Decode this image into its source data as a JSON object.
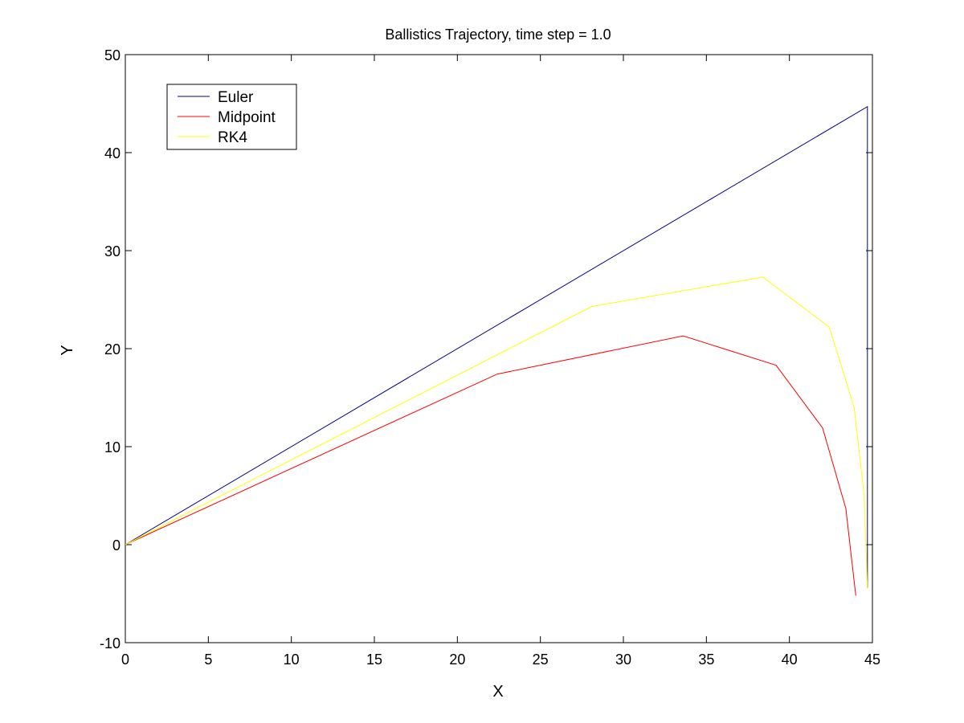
{
  "chart_data": {
    "type": "line",
    "title": "Ballistics Trajectory, time step = 1.0",
    "xlabel": "X",
    "ylabel": "Y",
    "xlim": [
      0,
      45
    ],
    "ylim": [
      -10,
      50
    ],
    "xticks": [
      0,
      5,
      10,
      15,
      20,
      25,
      30,
      35,
      40,
      45
    ],
    "yticks": [
      -10,
      0,
      10,
      20,
      30,
      40,
      50
    ],
    "grid": false,
    "legend_position": "top-left",
    "series": [
      {
        "name": "Euler",
        "color": "#00008b",
        "points": [
          [
            0,
            0
          ],
          [
            44.7,
            44.7
          ],
          [
            44.7,
            -4.4
          ]
        ]
      },
      {
        "name": "Midpoint",
        "color": "#ff0000",
        "points": [
          [
            0,
            0
          ],
          [
            22.4,
            17.4
          ],
          [
            33.6,
            21.3
          ],
          [
            39.2,
            18.3
          ],
          [
            42.0,
            11.9
          ],
          [
            43.4,
            3.7
          ],
          [
            44.0,
            -5.2
          ]
        ]
      },
      {
        "name": "RK4",
        "color": "#ffff00",
        "points": [
          [
            0,
            0
          ],
          [
            28.1,
            24.3
          ],
          [
            38.4,
            27.3
          ],
          [
            42.4,
            22.2
          ],
          [
            43.9,
            14.0
          ],
          [
            44.5,
            5.0
          ],
          [
            44.7,
            -4.5
          ]
        ]
      }
    ]
  }
}
